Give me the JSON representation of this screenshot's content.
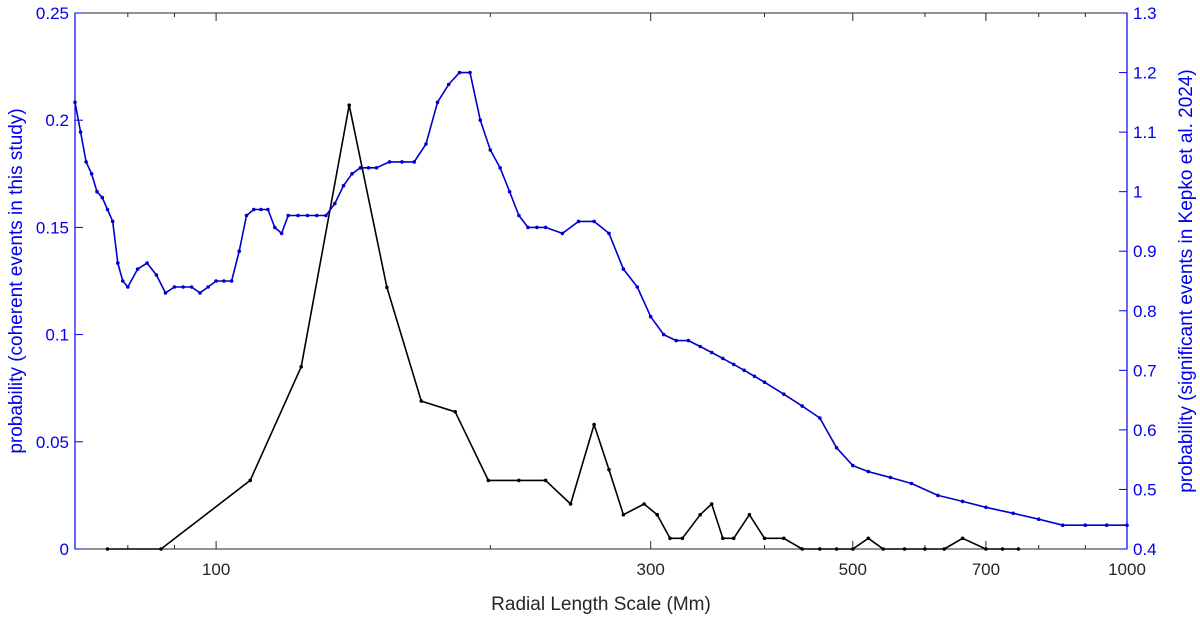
{
  "chart_data": {
    "type": "line",
    "xlabel": "Radial Length Scale (Mm)",
    "ylabel_left": "probability (coherent events in this study)",
    "ylabel_right": "probability (significant events in Kepko et al. 2024)",
    "xscale": "log",
    "xlim": [
      70,
      1000
    ],
    "ylim_left": [
      0,
      0.25
    ],
    "ylim_right": [
      0.4,
      1.3
    ],
    "x_ticks": [
      100,
      300,
      500,
      700,
      1000
    ],
    "x_tick_labels": [
      "100",
      "300",
      "500",
      "700",
      "1000"
    ],
    "y_left_ticks": [
      0,
      0.05,
      0.1,
      0.15,
      0.2,
      0.25
    ],
    "y_left_tick_labels": [
      "0",
      "0.05",
      "0.1",
      "0.15",
      "0.2",
      "0.25"
    ],
    "y_right_ticks": [
      0.4,
      0.5,
      0.6,
      0.7,
      0.8,
      0.9,
      1.0,
      1.1,
      1.2,
      1.3
    ],
    "y_right_tick_labels": [
      "0.4",
      "0.5",
      "0.6",
      "0.7",
      "0.8",
      "0.9",
      "1",
      "1.1",
      "1.2",
      "1.3"
    ],
    "grid": false,
    "colors": {
      "left_axis": "#0000ee",
      "right_axis": "#0000ee",
      "coherent": "#000000",
      "kepko": "#0000cc"
    },
    "series": [
      {
        "axis": "left",
        "color": "#000000",
        "x": [
          76,
          87,
          109,
          124,
          140,
          154,
          168,
          183,
          199,
          215,
          230,
          245,
          260,
          270,
          280,
          295,
          305,
          315,
          325,
          340,
          350,
          360,
          370,
          385,
          400,
          420,
          440,
          460,
          480,
          500,
          520,
          540,
          570,
          600,
          630,
          660,
          700,
          730,
          760
        ],
        "y": [
          0,
          0,
          0.032,
          0.085,
          0.207,
          0.122,
          0.069,
          0.064,
          0.032,
          0.032,
          0.032,
          0.021,
          0.058,
          0.037,
          0.016,
          0.021,
          0.016,
          0.005,
          0.005,
          0.016,
          0.021,
          0.005,
          0.005,
          0.016,
          0.005,
          0.005,
          0,
          0,
          0,
          0,
          0.005,
          0,
          0,
          0,
          0,
          0.005,
          0,
          0,
          0
        ]
      },
      {
        "axis": "right",
        "color": "#0000cc",
        "x": [
          70,
          71,
          72,
          73,
          74,
          75,
          76,
          77,
          78,
          79,
          80,
          82,
          84,
          86,
          88,
          90,
          92,
          94,
          96,
          98,
          100,
          102,
          104,
          106,
          108,
          110,
          112,
          114,
          116,
          118,
          120,
          123,
          126,
          129,
          132,
          135,
          138,
          141,
          144,
          147,
          150,
          155,
          160,
          165,
          170,
          175,
          180,
          185,
          190,
          195,
          200,
          205,
          210,
          215,
          220,
          225,
          230,
          240,
          250,
          260,
          270,
          280,
          290,
          300,
          310,
          320,
          330,
          340,
          350,
          360,
          370,
          380,
          390,
          400,
          420,
          440,
          460,
          480,
          500,
          520,
          550,
          580,
          620,
          660,
          700,
          750,
          800,
          850,
          900,
          950,
          1000
        ],
        "y": [
          1.15,
          1.1,
          1.05,
          1.03,
          1.0,
          0.99,
          0.97,
          0.95,
          0.88,
          0.85,
          0.84,
          0.87,
          0.88,
          0.86,
          0.83,
          0.84,
          0.84,
          0.84,
          0.83,
          0.84,
          0.85,
          0.85,
          0.85,
          0.9,
          0.96,
          0.97,
          0.97,
          0.97,
          0.94,
          0.93,
          0.96,
          0.96,
          0.96,
          0.96,
          0.96,
          0.98,
          1.01,
          1.03,
          1.04,
          1.04,
          1.04,
          1.05,
          1.05,
          1.05,
          1.08,
          1.15,
          1.18,
          1.2,
          1.2,
          1.12,
          1.07,
          1.04,
          1.0,
          0.96,
          0.94,
          0.94,
          0.94,
          0.93,
          0.95,
          0.95,
          0.93,
          0.87,
          0.84,
          0.79,
          0.76,
          0.75,
          0.75,
          0.74,
          0.73,
          0.72,
          0.71,
          0.7,
          0.69,
          0.68,
          0.66,
          0.64,
          0.62,
          0.57,
          0.54,
          0.53,
          0.52,
          0.51,
          0.49,
          0.48,
          0.47,
          0.46,
          0.45,
          0.44,
          0.44,
          0.44,
          0.44
        ]
      }
    ]
  }
}
